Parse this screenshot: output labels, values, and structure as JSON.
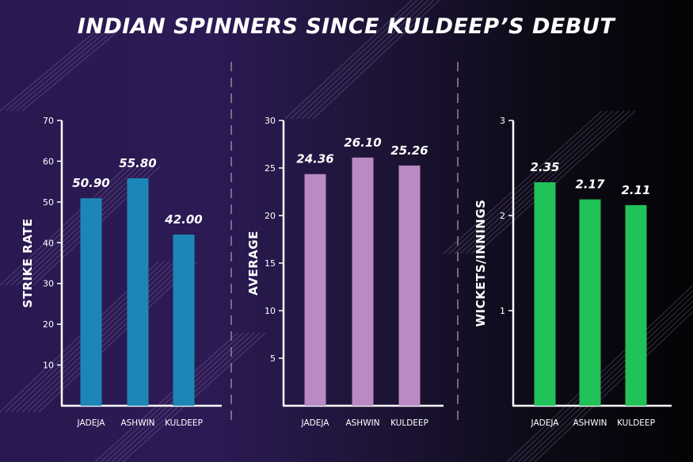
{
  "title": "INDIAN SPINNERS SINCE KULDEEP’S DEBUT",
  "chart_data": [
    {
      "type": "bar",
      "categories": [
        "JADEJA",
        "ASHWIN",
        "KULDEEP"
      ],
      "values": [
        50.9,
        55.8,
        42.0
      ],
      "value_labels": [
        "50.90",
        "55.80",
        "42.00"
      ],
      "ylabel": "STRIKE RATE",
      "ylim": [
        0,
        70
      ],
      "yticks": [
        10,
        20,
        30,
        40,
        50,
        60,
        70
      ],
      "bar_color": "#1c87b6",
      "grid": false
    },
    {
      "type": "bar",
      "categories": [
        "JADEJA",
        "ASHWIN",
        "KULDEEP"
      ],
      "values": [
        24.36,
        26.1,
        25.26
      ],
      "value_labels": [
        "24.36",
        "26.10",
        "25.26"
      ],
      "ylabel": "AVERAGE",
      "ylim": [
        0,
        30
      ],
      "yticks": [
        5,
        10,
        15,
        20,
        25,
        30
      ],
      "bar_color": "#ba8ac4",
      "grid": false
    },
    {
      "type": "bar",
      "categories": [
        "JADEJA",
        "ASHWIN",
        "KULDEEP"
      ],
      "values": [
        2.35,
        2.17,
        2.11
      ],
      "value_labels": [
        "2.35",
        "2.17",
        "2.11"
      ],
      "ylabel": "WICKETS/INNINGS",
      "ylim": [
        0,
        3
      ],
      "yticks": [
        1,
        2,
        3
      ],
      "bar_color": "#21c25a",
      "grid": false
    }
  ]
}
